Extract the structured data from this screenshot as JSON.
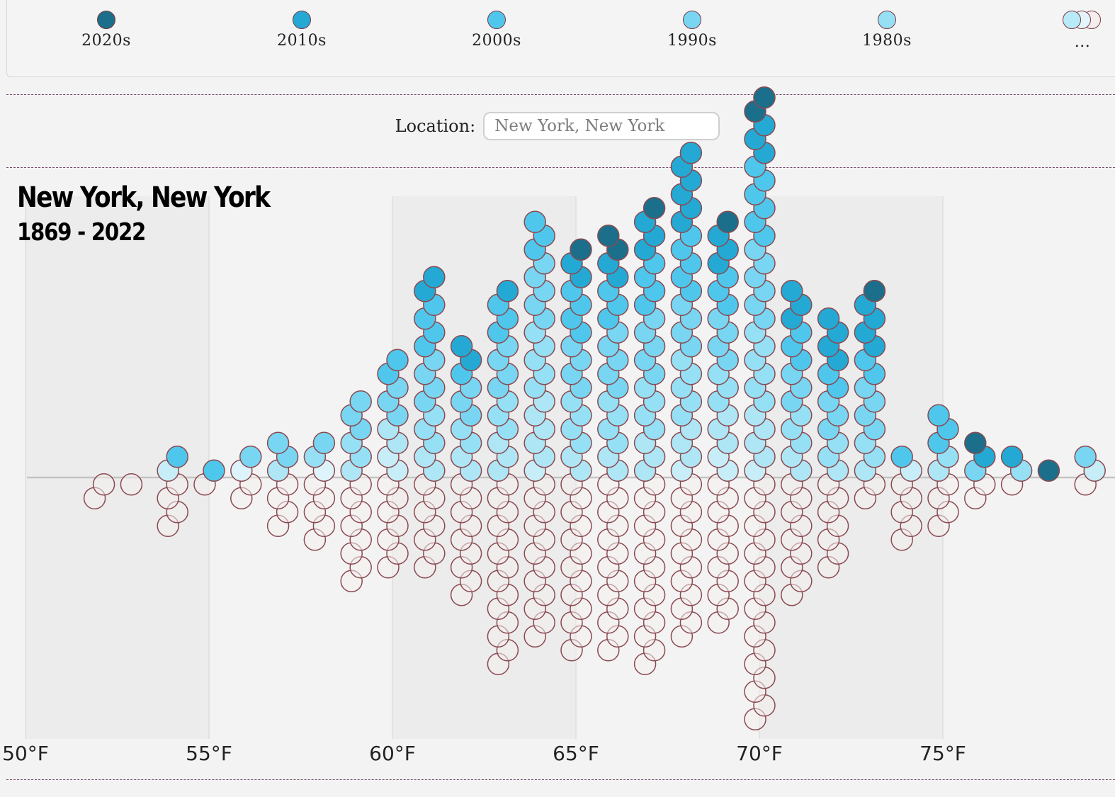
{
  "legend": {
    "items": [
      {
        "label": "2020s",
        "color": "#1c6f8a"
      },
      {
        "label": "2010s",
        "color": "#24a9d4"
      },
      {
        "label": "2000s",
        "color": "#4fc7ec"
      },
      {
        "label": "1990s",
        "color": "#78d6f2"
      },
      {
        "label": "1980s",
        "color": "#96e0f5"
      }
    ],
    "more_label": "...",
    "more_colors": [
      "#b9eaf7",
      "#e3f5fa",
      "#f4eeee"
    ]
  },
  "search": {
    "label": "Location:",
    "placeholder": "New York, New York",
    "value": ""
  },
  "chart_data": {
    "type": "scatter",
    "subtype": "beeswarm",
    "title": "New York, New York",
    "subtitle": "1869 - 2022",
    "xlabel": "",
    "ylabel": "",
    "x_unit": "°F",
    "xlim": [
      50,
      79
    ],
    "x_ticks": [
      "50°F",
      "55°F",
      "60°F",
      "65°F",
      "70°F",
      "75°F"
    ],
    "x_tick_values": [
      50,
      55,
      60,
      65,
      70,
      75
    ],
    "grid": true,
    "legend_position": "top",
    "decade_colors": {
      "2020s": "#1c6f8a",
      "2010s": "#24a9d4",
      "2000s": "#4fc7ec",
      "1990s": "#78d6f2",
      "1980s": "#96e0f5",
      "1970s": "#aee6f6",
      "1960s": "#c7eef8",
      "1950s": "#ddf4fa",
      "older": "#f4eeee"
    },
    "bins": [
      {
        "x": 52,
        "counts": {
          "older": 2
        }
      },
      {
        "x": 53,
        "counts": {
          "older": 1
        }
      },
      {
        "x": 54,
        "counts": {
          "2000s": 1,
          "1960s": 1,
          "older": 4
        }
      },
      {
        "x": 55,
        "counts": {
          "2000s": 1,
          "older": 1
        }
      },
      {
        "x": 56,
        "counts": {
          "1990s": 1,
          "1950s": 1,
          "older": 2
        }
      },
      {
        "x": 57,
        "counts": {
          "1990s": 2,
          "1970s": 1,
          "older": 4
        }
      },
      {
        "x": 58,
        "counts": {
          "1990s": 1,
          "1980s": 1,
          "1950s": 1,
          "older": 5
        }
      },
      {
        "x": 59,
        "counts": {
          "1990s": 3,
          "1980s": 2,
          "1970s": 1,
          "older": 8
        }
      },
      {
        "x": 60,
        "counts": {
          "2000s": 2,
          "1990s": 3,
          "1970s": 2,
          "1960s": 2,
          "older": 7
        }
      },
      {
        "x": 61,
        "counts": {
          "2010s": 2,
          "2000s": 4,
          "1990s": 4,
          "1980s": 3,
          "1970s": 2,
          "older": 7
        }
      },
      {
        "x": 62,
        "counts": {
          "2010s": 2,
          "2000s": 1,
          "1990s": 3,
          "1980s": 2,
          "1970s": 2,
          "older": 9
        }
      },
      {
        "x": 63,
        "counts": {
          "2010s": 1,
          "2000s": 3,
          "1990s": 4,
          "1980s": 3,
          "1970s": 3,
          "older": 14
        }
      },
      {
        "x": 64,
        "counts": {
          "2000s": 3,
          "1990s": 5,
          "1980s": 5,
          "1970s": 5,
          "1960s": 1,
          "older": 12
        }
      },
      {
        "x": 65,
        "counts": {
          "2020s": 1,
          "2010s": 2,
          "2000s": 4,
          "1990s": 4,
          "1980s": 4,
          "1970s": 2,
          "older": 13
        }
      },
      {
        "x": 66,
        "counts": {
          "2020s": 2,
          "2010s": 2,
          "2000s": 3,
          "1990s": 5,
          "1980s": 4,
          "1970s": 2,
          "older": 13
        }
      },
      {
        "x": 67,
        "counts": {
          "2020s": 1,
          "2010s": 3,
          "2000s": 4,
          "1990s": 5,
          "1980s": 4,
          "1970s": 3,
          "older": 14
        }
      },
      {
        "x": 68,
        "counts": {
          "2010s": 6,
          "2000s": 5,
          "1990s": 4,
          "1980s": 5,
          "1970s": 3,
          "1960s": 1,
          "older": 12
        }
      },
      {
        "x": 69,
        "counts": {
          "2020s": 1,
          "2010s": 3,
          "2000s": 3,
          "1990s": 4,
          "1980s": 3,
          "1970s": 3,
          "1960s": 2,
          "older": 11
        }
      },
      {
        "x": 70,
        "counts": {
          "2020s": 2,
          "2010s": 3,
          "2000s": 6,
          "1990s": 6,
          "1980s": 6,
          "1970s": 4,
          "1960s": 1,
          "older": 18
        }
      },
      {
        "x": 71,
        "counts": {
          "2010s": 3,
          "2000s": 3,
          "1990s": 3,
          "1980s": 3,
          "1970s": 2,
          "older": 9
        }
      },
      {
        "x": 72,
        "counts": {
          "2010s": 4,
          "2000s": 2,
          "1990s": 3,
          "1980s": 2,
          "1970s": 1,
          "older": 7
        }
      },
      {
        "x": 73,
        "counts": {
          "2020s": 1,
          "2010s": 4,
          "2000s": 2,
          "1990s": 4,
          "1980s": 2,
          "1970s": 1,
          "older": 2
        }
      },
      {
        "x": 74,
        "counts": {
          "2000s": 1,
          "1960s": 1,
          "older": 5
        }
      },
      {
        "x": 75,
        "counts": {
          "2000s": 3,
          "1980s": 1,
          "1970s": 1,
          "older": 4
        }
      },
      {
        "x": 76,
        "counts": {
          "2020s": 1,
          "2010s": 1,
          "1990s": 1,
          "older": 2
        }
      },
      {
        "x": 77,
        "counts": {
          "2010s": 1,
          "1980s": 1,
          "older": 1
        }
      },
      {
        "x": 78,
        "counts": {
          "2020s": 1
        }
      },
      {
        "x": 79,
        "counts": {
          "1990s": 1,
          "1960s": 1,
          "older": 1
        }
      }
    ]
  }
}
